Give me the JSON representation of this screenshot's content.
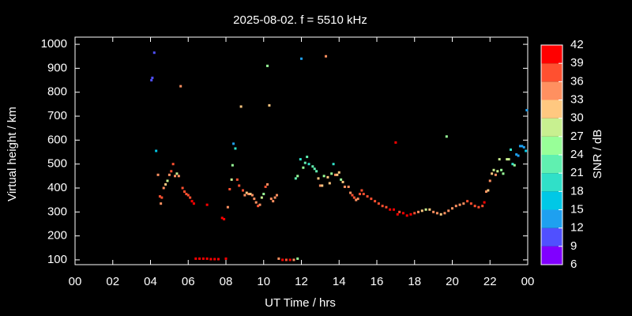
{
  "chart_data": {
    "type": "scatter",
    "title": "2025-08-02. f = 5510 kHz",
    "xlabel": "UT Time / hrs",
    "ylabel": "Virtual height / km",
    "colorbar_label": "SNR / dB",
    "xlim": [
      0,
      24
    ],
    "xticks": [
      {
        "value": 0,
        "label": "00"
      },
      {
        "value": 2,
        "label": "02"
      },
      {
        "value": 4,
        "label": "04"
      },
      {
        "value": 6,
        "label": "06"
      },
      {
        "value": 8,
        "label": "08"
      },
      10,
      12,
      14,
      16,
      18,
      20,
      22,
      {
        "value": 24,
        "label": "00"
      }
    ],
    "ylim": [
      80,
      1030
    ],
    "yticks": [
      100,
      200,
      300,
      400,
      500,
      600,
      700,
      800,
      900,
      1000
    ],
    "clim": [
      6,
      42
    ],
    "cticks": [
      6,
      9,
      12,
      15,
      18,
      21,
      24,
      27,
      30,
      33,
      36,
      39,
      42
    ],
    "colors": [
      "#8000ff",
      "#5050ff",
      "#1ea0f0",
      "#00c8e6",
      "#30e0c8",
      "#60f0b0",
      "#98ff98",
      "#c8f090",
      "#ffc880",
      "#ff9060",
      "#ff5030",
      "#ff0000"
    ],
    "x": [
      4.05,
      4.1,
      4.2,
      4.3,
      4.4,
      4.5,
      4.55,
      4.6,
      4.7,
      4.8,
      4.9,
      5.0,
      5.1,
      5.2,
      5.3,
      5.4,
      5.5,
      5.6,
      5.7,
      5.8,
      5.9,
      6.0,
      6.1,
      6.2,
      6.3,
      6.4,
      6.6,
      6.8,
      7.0,
      7.0,
      7.2,
      7.4,
      7.6,
      7.8,
      7.9,
      8.0,
      8.1,
      8.2,
      8.3,
      8.35,
      8.4,
      8.5,
      8.6,
      8.7,
      8.8,
      8.9,
      9.0,
      9.1,
      9.2,
      9.3,
      9.4,
      9.5,
      9.6,
      9.7,
      9.8,
      9.9,
      10.0,
      10.1,
      10.2,
      10.2,
      10.3,
      10.4,
      10.5,
      10.6,
      10.7,
      10.8,
      11.0,
      11.2,
      11.4,
      11.6,
      11.8,
      11.7,
      11.8,
      11.95,
      12.0,
      12.1,
      12.2,
      12.3,
      12.4,
      12.6,
      12.7,
      12.8,
      12.9,
      13.0,
      13.1,
      13.2,
      13.3,
      13.4,
      13.5,
      13.6,
      13.7,
      13.8,
      13.9,
      14.0,
      14.1,
      14.2,
      14.3,
      14.5,
      14.6,
      14.7,
      14.8,
      14.9,
      15.0,
      15.1,
      15.2,
      15.3,
      15.5,
      15.7,
      15.9,
      16.1,
      16.3,
      16.5,
      16.7,
      16.9,
      17.0,
      17.1,
      17.2,
      17.4,
      17.6,
      17.8,
      18.0,
      18.2,
      18.4,
      18.6,
      18.8,
      19.0,
      19.2,
      19.4,
      19.6,
      19.7,
      19.8,
      20.0,
      20.2,
      20.4,
      20.6,
      20.8,
      21.0,
      21.2,
      21.4,
      21.6,
      21.7,
      21.8,
      21.9,
      22.0,
      22.1,
      22.2,
      22.3,
      22.4,
      22.5,
      22.6,
      22.7,
      22.9,
      23.0,
      23.1,
      23.2,
      23.3,
      23.4,
      23.5,
      23.6,
      23.7,
      23.8,
      23.9,
      23.95
    ],
    "y": [
      850,
      860,
      965,
      555,
      455,
      365,
      335,
      360,
      400,
      415,
      430,
      455,
      470,
      500,
      450,
      460,
      450,
      825,
      400,
      385,
      375,
      370,
      360,
      345,
      335,
      105,
      105,
      105,
      330,
      105,
      103,
      103,
      103,
      275,
      270,
      105,
      320,
      395,
      435,
      495,
      585,
      565,
      435,
      410,
      740,
      390,
      370,
      380,
      375,
      375,
      370,
      355,
      340,
      325,
      330,
      360,
      375,
      405,
      415,
      910,
      745,
      355,
      345,
      360,
      370,
      105,
      100,
      100,
      100,
      100,
      105,
      440,
      450,
      520,
      940,
      485,
      505,
      530,
      500,
      490,
      480,
      470,
      440,
      410,
      410,
      450,
      950,
      445,
      420,
      460,
      500,
      455,
      455,
      465,
      435,
      425,
      405,
      405,
      380,
      370,
      360,
      350,
      355,
      375,
      390,
      375,
      365,
      355,
      345,
      335,
      325,
      320,
      310,
      310,
      590,
      290,
      300,
      295,
      285,
      290,
      295,
      300,
      305,
      310,
      310,
      300,
      295,
      290,
      295,
      615,
      305,
      315,
      325,
      330,
      335,
      345,
      335,
      325,
      320,
      325,
      340,
      385,
      390,
      430,
      460,
      475,
      455,
      470,
      520,
      475,
      460,
      520,
      520,
      560,
      500,
      495,
      540,
      535,
      575,
      575,
      570,
      555,
      725
    ],
    "snr": [
      9,
      9,
      9,
      15,
      33,
      36,
      33,
      36,
      33,
      30,
      27,
      33,
      36,
      36,
      33,
      27,
      33,
      33,
      36,
      36,
      36,
      36,
      36,
      39,
      39,
      39,
      39,
      39,
      39,
      39,
      39,
      39,
      39,
      39,
      39,
      39,
      33,
      36,
      27,
      24,
      12,
      18,
      36,
      36,
      30,
      36,
      33,
      30,
      33,
      30,
      33,
      33,
      33,
      36,
      33,
      27,
      24,
      36,
      33,
      24,
      30,
      33,
      33,
      33,
      33,
      33,
      39,
      36,
      39,
      33,
      24,
      21,
      24,
      18,
      12,
      24,
      21,
      21,
      18,
      21,
      21,
      21,
      30,
      33,
      30,
      24,
      33,
      30,
      30,
      24,
      18,
      33,
      30,
      30,
      24,
      30,
      33,
      33,
      33,
      36,
      36,
      33,
      33,
      36,
      36,
      36,
      36,
      36,
      36,
      36,
      36,
      36,
      39,
      39,
      39,
      39,
      36,
      39,
      39,
      39,
      36,
      33,
      30,
      27,
      30,
      33,
      33,
      30,
      33,
      24,
      33,
      33,
      33,
      33,
      33,
      36,
      36,
      36,
      36,
      36,
      39,
      33,
      30,
      33,
      30,
      27,
      33,
      27,
      27,
      24,
      24,
      27,
      27,
      18,
      18,
      24,
      12,
      12,
      12,
      12,
      12,
      15,
      12
    ]
  }
}
